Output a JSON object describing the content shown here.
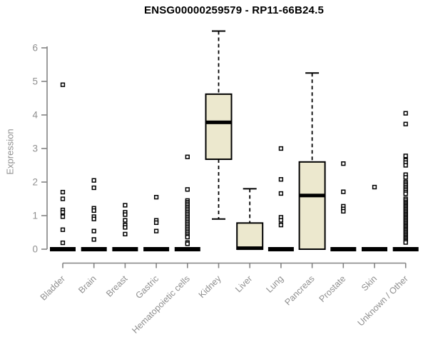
{
  "header": {
    "title": "ENSG00000259579 - RP11-66B24.5"
  },
  "chart_data": {
    "type": "boxplot",
    "title": "ENSG00000259579 - RP11-66B24.5",
    "xlabel": "",
    "ylabel": "Expression",
    "ylim": [
      0,
      6.6
    ],
    "yticks": [
      0,
      1,
      2,
      3,
      4,
      5,
      6
    ],
    "grid": false,
    "legend": "none",
    "point_style": "open-square",
    "categories": [
      "Bladder",
      "Brain",
      "Breast",
      "Gastric",
      "Hematopoietic cells",
      "Kidney",
      "Liver",
      "Lung",
      "Pancreas",
      "Prostate",
      "Skin",
      "Unknown / Other"
    ],
    "boxes": [
      {
        "category": "Bladder",
        "min": 0,
        "q1": 0,
        "median": 0,
        "q3": 0,
        "max": 0,
        "outliers": [
          4.9,
          1.7,
          1.5,
          1.17,
          1.1,
          0.97,
          0.58,
          0.19
        ]
      },
      {
        "category": "Brain",
        "min": 0,
        "q1": 0,
        "median": 0,
        "q3": 0,
        "max": 0,
        "outliers": [
          2.05,
          1.83,
          1.22,
          1.15,
          0.97,
          0.9,
          0.54,
          0.29
        ]
      },
      {
        "category": "Breast",
        "min": 0,
        "q1": 0,
        "median": 0,
        "q3": 0,
        "max": 0,
        "outliers": [
          1.31,
          1.1,
          1.03,
          0.86,
          0.72,
          0.65,
          0.45
        ]
      },
      {
        "category": "Gastric",
        "min": 0,
        "q1": 0,
        "median": 0,
        "q3": 0,
        "max": 0,
        "outliers": [
          1.55,
          0.86,
          0.79,
          0.54
        ]
      },
      {
        "category": "Hematopoietic cells",
        "min": 0,
        "q1": 0,
        "median": 0,
        "q3": 0,
        "max": 0,
        "outliers": [
          2.75,
          1.78,
          1.45,
          1.4,
          1.35,
          1.3,
          1.25,
          1.2,
          1.15,
          1.1,
          1.05,
          1.0,
          0.95,
          0.9,
          0.85,
          0.8,
          0.75,
          0.7,
          0.65,
          0.6,
          0.55,
          0.5,
          0.45,
          0.4,
          0.36,
          0.2,
          0.16
        ]
      },
      {
        "category": "Kidney",
        "min": 0.9,
        "q1": 2.68,
        "median": 3.78,
        "q3": 4.62,
        "max": 6.5,
        "outliers": []
      },
      {
        "category": "Liver",
        "min": 0,
        "q1": 0,
        "median": 0.03,
        "q3": 0.78,
        "max": 1.8,
        "outliers": []
      },
      {
        "category": "Lung",
        "min": 0,
        "q1": 0,
        "median": 0,
        "q3": 0,
        "max": 0,
        "outliers": [
          3.0,
          2.08,
          1.66,
          0.95,
          0.86,
          0.72
        ]
      },
      {
        "category": "Pancreas",
        "min": 0,
        "q1": 0,
        "median": 1.6,
        "q3": 2.6,
        "max": 5.25,
        "outliers": []
      },
      {
        "category": "Prostate",
        "min": 0,
        "q1": 0,
        "median": 0,
        "q3": 0,
        "max": 0,
        "outliers": [
          2.55,
          1.71,
          1.28,
          1.2,
          1.13
        ]
      },
      {
        "category": "Skin",
        "min": 0,
        "q1": 0,
        "median": 0,
        "q3": 0,
        "max": 0,
        "outliers": [
          1.85
        ]
      },
      {
        "category": "Unknown / Other",
        "min": 0,
        "q1": 0,
        "median": 0,
        "q3": 0,
        "max": 0,
        "outliers": [
          4.05,
          3.73,
          2.78,
          2.65,
          2.58,
          2.5,
          2.22,
          2.14,
          2.0,
          1.95,
          1.9,
          1.85,
          1.8,
          1.75,
          1.7,
          1.65,
          1.5,
          1.45,
          1.4,
          1.36,
          1.32,
          1.28,
          1.24,
          1.2,
          1.16,
          1.12,
          1.08,
          1.04,
          1.0,
          0.96,
          0.92,
          0.88,
          0.84,
          0.8,
          0.76,
          0.72,
          0.68,
          0.64,
          0.6,
          0.56,
          0.52,
          0.48,
          0.44,
          0.4,
          0.36,
          0.32,
          0.28,
          0.24,
          0.2
        ]
      }
    ],
    "colors": {
      "box_fill": "#ECE8CE",
      "box_border": "#000000",
      "median": "#000000",
      "whisker": "#000000",
      "outlier_stroke": "#000000",
      "outlier_fill": "#ffffff",
      "axis_line": "#848484",
      "tick_text": "#8f8f8f",
      "title_text": "#000000",
      "background": "#ffffff"
    }
  }
}
